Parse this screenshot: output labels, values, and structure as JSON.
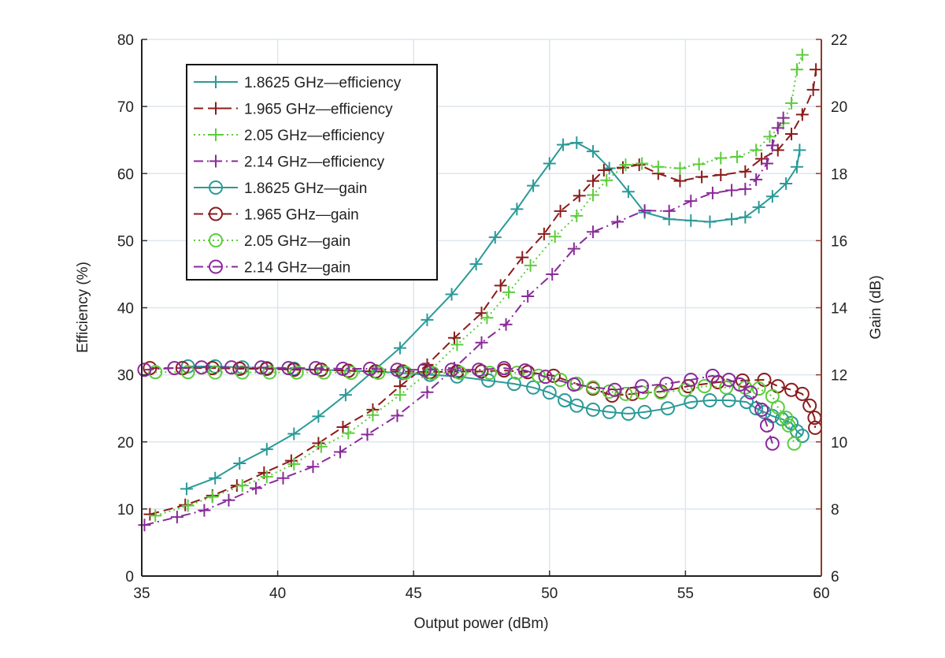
{
  "chart_data": {
    "type": "line",
    "xlabel": "Output power (dBm)",
    "ylabel": "Efficiency (%)",
    "y2label": "Gain (dB)",
    "xlim": [
      35,
      60
    ],
    "ylim": [
      0,
      80
    ],
    "y2lim": [
      6,
      22
    ],
    "xticks": [
      35,
      40,
      45,
      50,
      55,
      60
    ],
    "yticks": [
      0,
      10,
      20,
      30,
      40,
      50,
      60,
      70,
      80
    ],
    "y2ticks": [
      6,
      8,
      10,
      12,
      14,
      16,
      18,
      20,
      22
    ],
    "grid": true,
    "legend_placement": "top-left",
    "colors": {
      "1.8625": "#2a9a98",
      "1.965": "#8b1c1c",
      "2.05": "#5ccc3c",
      "2.14": "#8a2a9a",
      "right_axis": "#8b3a2a"
    },
    "series": [
      {
        "name": "1.8625 GHz—efficiency",
        "axis": "left",
        "color": "#2a9a98",
        "dash": "solid",
        "marker": "plus",
        "x": [
          36.65,
          37.7,
          38.6,
          39.6,
          40.6,
          41.5,
          42.5,
          43.5,
          44.5,
          45.5,
          46.4,
          47.3,
          48.0,
          48.8,
          49.4,
          50.0,
          50.5,
          51.0,
          51.6,
          52.2,
          52.9,
          53.5,
          54.4,
          55.2,
          55.9,
          56.7,
          57.2,
          57.7,
          58.2,
          58.7,
          59.1,
          59.2
        ],
        "y": [
          13,
          14.6,
          16.8,
          18.9,
          21.2,
          23.8,
          27,
          30.5,
          34,
          38.2,
          42,
          46.5,
          50.5,
          54.7,
          58.2,
          61.5,
          64.3,
          64.6,
          63.3,
          60.8,
          57.3,
          54.2,
          53.2,
          53,
          52.8,
          53.2,
          53.5,
          55,
          56.6,
          58.5,
          61,
          63.5
        ]
      },
      {
        "name": "1.965 GHz—efficiency",
        "axis": "left",
        "color": "#8b1c1c",
        "dash": "dashed",
        "marker": "plus",
        "x": [
          35.3,
          36.6,
          37.6,
          38.5,
          39.5,
          40.5,
          41.5,
          42.4,
          43.5,
          44.5,
          45.5,
          46.5,
          47.5,
          48.2,
          49.0,
          49.8,
          50.4,
          51.1,
          51.6,
          52.0,
          52.7,
          53.3,
          54.0,
          54.8,
          55.6,
          56.3,
          57.2,
          57.8,
          58.4,
          58.9,
          59.3,
          59.7,
          59.8
        ],
        "y": [
          9.2,
          10.6,
          12,
          13.5,
          15.4,
          17.2,
          19.8,
          22.2,
          24.8,
          28.3,
          31.5,
          35.5,
          39.2,
          43.3,
          47.5,
          51,
          54.4,
          56.7,
          58.9,
          60.5,
          60.9,
          61.3,
          60,
          58.9,
          59.5,
          59.8,
          60.3,
          62.2,
          63.5,
          65.9,
          68.8,
          72.5,
          75.5
        ]
      },
      {
        "name": "2.05 GHz—efficiency",
        "axis": "left",
        "color": "#5ccc3c",
        "dash": "dotted",
        "marker": "plus",
        "x": [
          35.5,
          36.7,
          37.6,
          38.7,
          39.6,
          40.6,
          41.6,
          42.6,
          43.5,
          44.5,
          45.5,
          46.6,
          47.7,
          48.5,
          49.3,
          50.2,
          51.0,
          51.6,
          52.1,
          52.8,
          53.4,
          54.0,
          54.8,
          55.5,
          56.3,
          56.9,
          57.6,
          58.1,
          58.6,
          58.9,
          59.1,
          59.3
        ],
        "y": [
          9,
          10.5,
          11.8,
          13.5,
          14.8,
          16.7,
          19.3,
          21.3,
          24,
          27,
          30.2,
          34.5,
          38.5,
          42.3,
          46.3,
          50.6,
          53.7,
          56.8,
          59,
          61.3,
          61.5,
          61,
          60.8,
          61.4,
          62.3,
          62.5,
          63.5,
          65.5,
          67.5,
          70.5,
          75.5,
          77.7
        ]
      },
      {
        "name": "2.14 GHz—efficiency",
        "axis": "left",
        "color": "#8a2a9a",
        "dash": "dashdot",
        "marker": "plus",
        "x": [
          35.1,
          36.3,
          37.3,
          38.2,
          39.2,
          40.2,
          41.3,
          42.3,
          43.3,
          44.4,
          45.5,
          46.5,
          47.5,
          48.4,
          49.2,
          50.1,
          50.9,
          51.6,
          52.5,
          53.5,
          54.4,
          55.2,
          56.0,
          56.7,
          57.2,
          57.6,
          58.0,
          58.2,
          58.4,
          58.6
        ],
        "y": [
          7.6,
          8.8,
          9.8,
          11.3,
          13.1,
          14.6,
          16.3,
          18.5,
          21.1,
          23.9,
          27.4,
          31,
          34.8,
          37.5,
          41.7,
          45,
          48.8,
          51.3,
          52.8,
          54.5,
          54.4,
          55.9,
          57.1,
          57.5,
          57.7,
          59.1,
          61.5,
          64.2,
          66.8,
          68.3
        ]
      },
      {
        "name": "1.8625 GHz—gain",
        "axis": "right",
        "color": "#2a9a98",
        "dash": "solid",
        "marker": "circle",
        "x": [
          36.7,
          37.7,
          38.7,
          39.6,
          40.6,
          41.6,
          42.6,
          43.6,
          44.6,
          45.6,
          46.6,
          47.75,
          48.7,
          49.4,
          50.0,
          50.56,
          51.0,
          51.6,
          52.2,
          52.9,
          53.5,
          54.35,
          55.2,
          55.9,
          56.6,
          57.25,
          57.6,
          57.9,
          58.2,
          58.55,
          58.9,
          59.1,
          59.3
        ],
        "y": [
          12.25,
          12.25,
          12.22,
          12.2,
          12.18,
          12.15,
          12.12,
          12.1,
          12.05,
          12.0,
          11.95,
          11.83,
          11.73,
          11.62,
          11.47,
          11.24,
          11.08,
          10.96,
          10.89,
          10.84,
          10.89,
          11.0,
          11.19,
          11.24,
          11.24,
          11.19,
          11.0,
          10.89,
          10.77,
          10.68,
          10.56,
          10.32,
          10.18
        ]
      },
      {
        "name": "1.965 GHz—gain",
        "axis": "right",
        "color": "#8b1c1c",
        "dash": "dashed",
        "marker": "circle",
        "x": [
          35.3,
          36.5,
          37.6,
          38.6,
          39.6,
          40.6,
          41.6,
          42.6,
          43.6,
          44.6,
          45.6,
          46.6,
          47.5,
          48.33,
          49.2,
          50.15,
          51.0,
          51.6,
          52.3,
          53.05,
          54.1,
          55.1,
          56.2,
          57.1,
          57.9,
          58.4,
          58.9,
          59.3,
          59.57,
          59.75,
          59.77
        ],
        "y": [
          12.2,
          12.2,
          12.2,
          12.18,
          12.18,
          12.15,
          12.15,
          12.12,
          12.1,
          12.1,
          12.08,
          12.1,
          12.1,
          12.13,
          12.08,
          11.97,
          11.73,
          11.59,
          11.38,
          11.43,
          11.5,
          11.66,
          11.78,
          11.83,
          11.85,
          11.66,
          11.55,
          11.43,
          11.08,
          10.72,
          10.42
        ]
      },
      {
        "name": "2.05 GHz—gain",
        "axis": "right",
        "color": "#5ccc3c",
        "dash": "dotted",
        "marker": "circle",
        "x": [
          35.5,
          36.7,
          37.7,
          38.7,
          39.7,
          40.7,
          41.7,
          42.7,
          43.7,
          44.7,
          45.7,
          46.7,
          47.8,
          48.8,
          49.6,
          50.4,
          51.0,
          51.6,
          52.2,
          52.8,
          53.4,
          54.1,
          55.0,
          55.7,
          56.5,
          57.2,
          57.7,
          58.2,
          58.4,
          58.7,
          58.8,
          59.0
        ],
        "y": [
          12.08,
          12.08,
          12.07,
          12.07,
          12.07,
          12.07,
          12.07,
          12.06,
          12.06,
          12.06,
          12.05,
          12.06,
          12.06,
          12.06,
          11.97,
          11.85,
          11.73,
          11.62,
          11.5,
          11.43,
          11.47,
          11.47,
          11.55,
          11.66,
          11.62,
          11.62,
          11.59,
          11.36,
          11.03,
          10.72,
          10.49,
          9.95
        ]
      },
      {
        "name": "2.14 GHz—gain",
        "axis": "right",
        "color": "#8a2a9a",
        "dash": "dashdot",
        "marker": "circle",
        "x": [
          35.1,
          36.2,
          37.2,
          38.3,
          39.4,
          40.4,
          41.4,
          42.4,
          43.4,
          44.4,
          45.4,
          46.4,
          47.4,
          48.33,
          49.1,
          49.85,
          50.9,
          52.4,
          53.4,
          54.3,
          55.2,
          56.0,
          56.6,
          57.0,
          57.4,
          57.8,
          58.0,
          58.2
        ],
        "y": [
          12.15,
          12.2,
          12.22,
          12.22,
          12.22,
          12.2,
          12.2,
          12.18,
          12.18,
          12.15,
          12.15,
          12.15,
          12.15,
          12.2,
          12.13,
          11.94,
          11.71,
          11.55,
          11.66,
          11.73,
          11.85,
          11.97,
          11.85,
          11.71,
          11.47,
          10.96,
          10.49,
          9.95
        ]
      }
    ]
  }
}
